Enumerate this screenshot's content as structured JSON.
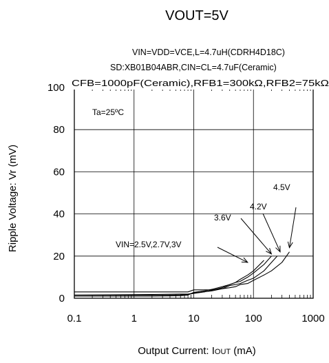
{
  "chart_data": {
    "type": "line",
    "title": "VOUT=5V",
    "conditions": [
      "VIN=VDD=VCE,L=4.7uH(CDRH4D18C)",
      "SD:XB01B04ABR,CIN=CL=4.7uF(Ceramic)",
      "CFB=1000pF(Ceramic),RFB1=300kΩ,RFB2=75kΩ"
    ],
    "ambient": "Ta=25ºC",
    "xlabel_prefix": "Output Current: I",
    "xlabel_sub": "OUT",
    "xlabel_suffix": " (mA)",
    "ylabel": "Ripple Voltage: Vr (mV)",
    "x_scale": "log",
    "xlim": [
      0.1,
      1000
    ],
    "ylim": [
      0,
      100
    ],
    "x_ticks": [
      0.1,
      1,
      10,
      100,
      1000
    ],
    "x_tick_labels": [
      "0.1",
      "1",
      "10",
      "100",
      "1000"
    ],
    "y_ticks": [
      0,
      20,
      40,
      60,
      80,
      100
    ],
    "y_tick_labels": [
      "0",
      "20",
      "40",
      "60",
      "80",
      "100"
    ],
    "grid": true,
    "series": [
      {
        "x": [
          0.1,
          2,
          6,
          8,
          10,
          15,
          20,
          30,
          40,
          50,
          60,
          80,
          100,
          150
        ],
        "y": [
          1.5,
          1.5,
          1.6,
          1.8,
          2.3,
          3,
          3.8,
          5,
          6.5,
          7.5,
          9,
          11,
          13,
          18
        ]
      },
      {
        "x": [
          0.1,
          2,
          6,
          8,
          10,
          15,
          20,
          30,
          40,
          50,
          60,
          80,
          100,
          150,
          200
        ],
        "y": [
          1,
          1,
          1.2,
          1.5,
          2.8,
          3.5,
          4.2,
          5.5,
          6.5,
          7.5,
          8,
          10,
          12,
          16,
          20
        ]
      },
      {
        "x": [
          0.1,
          2,
          6,
          8,
          10,
          20,
          30,
          40,
          50,
          60,
          80,
          100,
          150,
          200,
          250
        ],
        "y": [
          3,
          3,
          3,
          3,
          4,
          4,
          4.5,
          6,
          6.5,
          7,
          8.5,
          9.5,
          13,
          17,
          20
        ]
      },
      {
        "x": [
          0.1,
          2,
          6,
          8,
          10,
          20,
          30,
          40,
          50,
          60,
          80,
          100,
          150,
          200,
          300,
          400
        ],
        "y": [
          1.5,
          1.8,
          2,
          2,
          2.5,
          3.5,
          4.5,
          5,
          5.5,
          6.5,
          7,
          8.5,
          11,
          13,
          17,
          22
        ]
      }
    ],
    "annotations": [
      {
        "text": "VIN=2.5V,2.7V,3V",
        "arrow_to": [
          80,
          17
        ]
      },
      {
        "text": "3.6V",
        "arrow_to": [
          200,
          21
        ]
      },
      {
        "text": "4.2V",
        "arrow_to": [
          280,
          22
        ]
      },
      {
        "text": "4.5V",
        "arrow_to": [
          400,
          24
        ]
      }
    ]
  }
}
